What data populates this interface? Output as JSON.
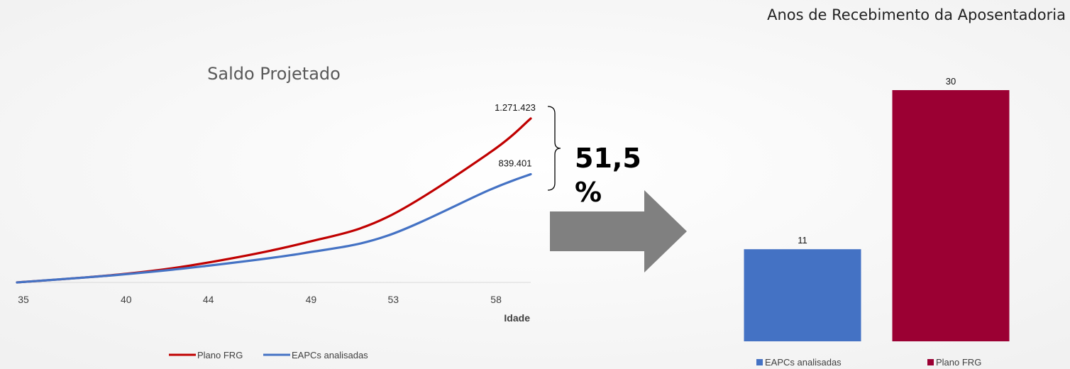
{
  "chart_data": [
    {
      "type": "line",
      "title": "Saldo Projetado",
      "xlabel": "Idade",
      "ylabel": "",
      "x_ticks": [
        "35",
        "40",
        "44",
        "49",
        "53",
        "58"
      ],
      "x_range": [
        35,
        60
      ],
      "grid": false,
      "legend_position": "bottom",
      "series": [
        {
          "name": "Plano FRG",
          "color": "#c00000",
          "x": [
            35,
            40,
            44,
            49,
            53,
            58,
            60
          ],
          "values": [
            0,
            62000,
            146000,
            307000,
            505000,
            1006000,
            1271423
          ],
          "end_label": "1.271.423"
        },
        {
          "name": "EAPCs analisadas",
          "color": "#4472c4",
          "x": [
            35,
            40,
            44,
            49,
            53,
            58,
            60
          ],
          "values": [
            0,
            60000,
            124000,
            228000,
            361000,
            718000,
            839401
          ],
          "end_label": "839.401"
        }
      ]
    },
    {
      "type": "bar",
      "title": "Anos de Recebimento da Aposentadoria",
      "categories": [
        "EAPCs analisadas",
        "Plano FRG"
      ],
      "values": [
        11,
        30
      ],
      "value_labels": [
        "11",
        "30"
      ],
      "colors": [
        "#4472c4",
        "#9b0033"
      ],
      "ylim": [
        0,
        32
      ],
      "grid": false,
      "legend_position": "bottom"
    }
  ],
  "annotation": {
    "pct_line1": "51,5",
    "pct_line2": "%",
    "arrow_color": "#808080"
  }
}
